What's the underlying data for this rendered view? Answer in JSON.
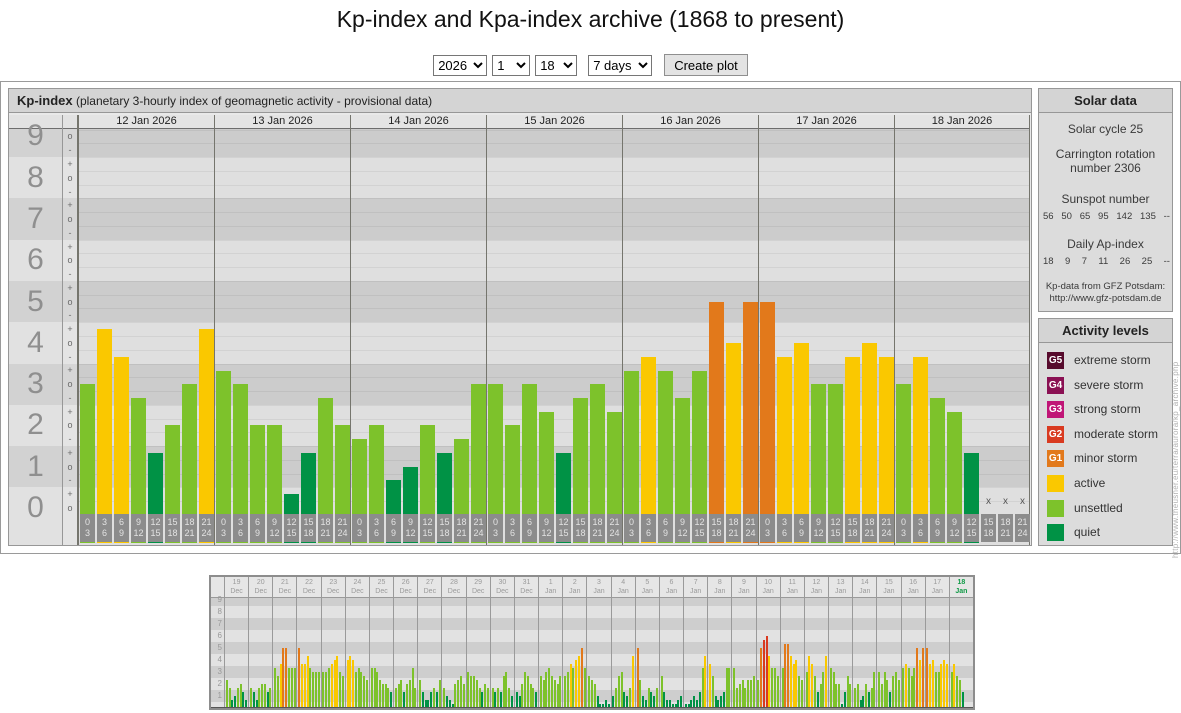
{
  "page_title": "Kp-index and Kpa-index archive (1868 to present)",
  "controls": {
    "year": "2026",
    "month": "1",
    "day": "18",
    "range": "7 days",
    "create_button": "Create plot"
  },
  "kp_panel": {
    "title": "Kp-index",
    "subtitle": "(planetary 3-hourly index of geomagnetic activity - provisional data)"
  },
  "colors": {
    "quiet": "#009245",
    "unsettled": "#7dc22b",
    "active": "#fac800",
    "g1": "#e2791b",
    "g2": "#d93a20",
    "g3": "#c01577",
    "g4": "#8a1053",
    "g5": "#570b2d",
    "today_label": "#109a46"
  },
  "chart_data": [
    {
      "type": "bar",
      "name": "kp-index-7day",
      "title": "Kp-index",
      "ylabel": "Kp",
      "ylim": [
        0,
        9.33
      ],
      "yticks": [
        0,
        1,
        2,
        3,
        4,
        5,
        6,
        7,
        8,
        9
      ],
      "ytick_sublabels": [
        "+",
        "o",
        "-"
      ],
      "grid": "horizontal-bands",
      "missing_marker": "x",
      "x_slot_labels": [
        [
          "0",
          "3"
        ],
        [
          "3",
          "6"
        ],
        [
          "6",
          "9"
        ],
        [
          "9",
          "12"
        ],
        [
          "12",
          "15"
        ],
        [
          "15",
          "18"
        ],
        [
          "18",
          "21"
        ],
        [
          "21",
          "24"
        ]
      ],
      "days": [
        {
          "date": "12 Jan 2026",
          "values": [
            3,
            4.33,
            3.67,
            2.67,
            1.33,
            2,
            3,
            4.33
          ],
          "labels": [
            "3o",
            "4+",
            "4-",
            "3-",
            "1+",
            "2o",
            "3o",
            "4+"
          ]
        },
        {
          "date": "13 Jan 2026",
          "values": [
            3.33,
            3,
            2,
            2,
            0.33,
            1.33,
            2.67,
            2
          ],
          "labels": [
            "3+",
            "3o",
            "2o",
            "2o",
            "0+",
            "1+",
            "3-",
            "2o"
          ]
        },
        {
          "date": "14 Jan 2026",
          "values": [
            1.67,
            2,
            0.67,
            1,
            2,
            1.33,
            1.67,
            3
          ],
          "labels": [
            "2-",
            "2o",
            "1-",
            "1o",
            "2o",
            "1+",
            "2-",
            "3o"
          ]
        },
        {
          "date": "15 Jan 2026",
          "values": [
            3,
            2,
            3,
            2.33,
            1.33,
            2.67,
            3,
            2.33
          ],
          "labels": [
            "3o",
            "2o",
            "3o",
            "2+",
            "1+",
            "3-",
            "3o",
            "2+"
          ]
        },
        {
          "date": "16 Jan 2026",
          "values": [
            3.33,
            3.67,
            3.33,
            2.67,
            3.33,
            5,
            4,
            5
          ],
          "labels": [
            "3+",
            "4-",
            "3+",
            "3-",
            "3+",
            "5o",
            "4o",
            "5o"
          ]
        },
        {
          "date": "17 Jan 2026",
          "values": [
            5,
            3.67,
            4,
            3,
            3,
            3.67,
            4,
            3.67
          ],
          "labels": [
            "5o",
            "4-",
            "4o",
            "3o",
            "3o",
            "4-",
            "4o",
            "4-"
          ]
        },
        {
          "date": "18 Jan 2026",
          "values": [
            3,
            3.67,
            2.67,
            2.33,
            1.33,
            null,
            null,
            null
          ],
          "labels": [
            "3o",
            "4-",
            "3-",
            "2+",
            "1+",
            null,
            null,
            null
          ]
        }
      ]
    },
    {
      "type": "bar",
      "name": "kp-index-31day-overview",
      "ylim": [
        0,
        9
      ],
      "yticks": [
        1,
        2,
        3,
        4,
        5,
        6,
        7,
        8,
        9
      ],
      "grid": "horizontal-bands",
      "days": [
        {
          "day": "19",
          "mon": "Dec",
          "values": [
            2.3,
            1.7,
            0.7,
            1,
            1.7,
            2,
            1.3,
            0.7
          ]
        },
        {
          "day": "20",
          "mon": "Dec",
          "values": [
            1.7,
            1.3,
            0.7,
            1.7,
            2,
            2,
            1.3,
            1.7
          ]
        },
        {
          "day": "21",
          "mon": "Dec",
          "values": [
            3.3,
            2.7,
            3.7,
            5,
            5,
            3.3,
            3.3,
            3.3
          ]
        },
        {
          "day": "22",
          "mon": "Dec",
          "values": [
            5,
            3.7,
            3.7,
            4.3,
            3.3,
            3,
            3,
            3
          ]
        },
        {
          "day": "23",
          "mon": "Dec",
          "values": [
            3,
            3,
            3.3,
            3.7,
            4,
            4.3,
            3,
            2.7
          ]
        },
        {
          "day": "24",
          "mon": "Dec",
          "values": [
            4,
            4.3,
            4,
            3,
            3.3,
            3,
            2.7,
            2.3
          ]
        },
        {
          "day": "25",
          "mon": "Dec",
          "values": [
            3.3,
            3.3,
            3,
            2.3,
            2,
            2,
            1.7,
            1.3
          ]
        },
        {
          "day": "26",
          "mon": "Dec",
          "values": [
            1.7,
            2,
            2.3,
            1.3,
            2,
            2.3,
            3.3,
            1.7
          ]
        },
        {
          "day": "27",
          "mon": "Dec",
          "values": [
            2.3,
            1.3,
            0.7,
            0.7,
            1.3,
            1.7,
            1.3,
            2.3
          ]
        },
        {
          "day": "28",
          "mon": "Dec",
          "values": [
            1.7,
            1,
            0.7,
            0.3,
            2,
            2.3,
            2.7,
            2
          ]
        },
        {
          "day": "29",
          "mon": "Dec",
          "values": [
            3,
            2.7,
            2.7,
            2.3,
            1.7,
            1.3,
            2,
            1.7
          ]
        },
        {
          "day": "30",
          "mon": "Dec",
          "values": [
            1.7,
            1.3,
            1.7,
            1.3,
            2.7,
            3,
            1.7,
            1
          ]
        },
        {
          "day": "31",
          "mon": "Dec",
          "values": [
            1.3,
            1,
            2,
            3,
            2.7,
            2,
            1.7,
            1.3
          ]
        },
        {
          "day": "1",
          "mon": "Jan",
          "values": [
            2.7,
            2.3,
            3,
            3.3,
            2.7,
            2.3,
            2,
            2.7
          ]
        },
        {
          "day": "2",
          "mon": "Jan",
          "values": [
            2.7,
            3,
            3.7,
            3.3,
            4,
            4.3,
            5,
            3.3
          ]
        },
        {
          "day": "3",
          "mon": "Jan",
          "values": [
            2.7,
            2.3,
            2,
            1,
            0.3,
            0.3,
            0.7,
            0.3
          ]
        },
        {
          "day": "4",
          "mon": "Jan",
          "values": [
            1,
            1.7,
            2.7,
            3,
            1.3,
            1,
            1.7,
            4.3
          ]
        },
        {
          "day": "5",
          "mon": "Jan",
          "values": [
            5,
            2.3,
            1,
            0.7,
            1.7,
            1.3,
            1,
            1.7
          ]
        },
        {
          "day": "6",
          "mon": "Jan",
          "values": [
            2.7,
            1.3,
            0.7,
            0.7,
            0.3,
            0.3,
            0.7,
            1
          ]
        },
        {
          "day": "7",
          "mon": "Jan",
          "values": [
            0.3,
            0.3,
            0.7,
            1,
            0.7,
            1.3,
            3.3,
            4.3
          ]
        },
        {
          "day": "8",
          "mon": "Jan",
          "values": [
            3.7,
            2.7,
            1,
            0.7,
            1,
            1.3,
            3.3,
            3.3
          ]
        },
        {
          "day": "9",
          "mon": "Jan",
          "values": [
            3.3,
            1.7,
            2,
            2.3,
            1.7,
            2.3,
            2.3,
            2.7
          ]
        },
        {
          "day": "10",
          "mon": "Jan",
          "values": [
            2.3,
            5,
            5.7,
            6,
            4.3,
            3.3,
            3.3,
            2.7
          ]
        },
        {
          "day": "11",
          "mon": "Jan",
          "values": [
            3.3,
            5.3,
            5.3,
            4.3,
            3.7,
            4,
            2.7,
            2.3
          ]
        },
        {
          "day": "12",
          "mon": "Jan",
          "values": [
            3,
            4.3,
            3.7,
            2.7,
            1.3,
            2,
            3,
            4.3
          ]
        },
        {
          "day": "13",
          "mon": "Jan",
          "values": [
            3.3,
            3,
            2,
            2,
            0.3,
            1.3,
            2.7,
            2
          ]
        },
        {
          "day": "14",
          "mon": "Jan",
          "values": [
            1.7,
            2,
            0.7,
            1,
            2,
            1.3,
            1.7,
            3
          ]
        },
        {
          "day": "15",
          "mon": "Jan",
          "values": [
            3,
            2,
            3,
            2.3,
            1.3,
            2.7,
            3,
            2.3
          ]
        },
        {
          "day": "16",
          "mon": "Jan",
          "values": [
            3.3,
            3.7,
            3.3,
            2.7,
            3.3,
            5,
            4,
            5
          ]
        },
        {
          "day": "17",
          "mon": "Jan",
          "values": [
            5,
            3.7,
            4,
            3,
            3,
            3.7,
            4,
            3.7
          ]
        },
        {
          "day": "18",
          "mon": "Jan",
          "values": [
            3,
            3.7,
            2.7,
            2.3,
            1.3
          ],
          "today": true
        }
      ]
    }
  ],
  "solar": {
    "title": "Solar data",
    "cycle": "Solar cycle 25",
    "carrington": "Carrington rotation number 2306",
    "sunspot_title": "Sunspot number",
    "sunspot_values": [
      "56",
      "50",
      "65",
      "95",
      "142",
      "135",
      "--"
    ],
    "ap_title": "Daily Ap-index",
    "ap_values": [
      "18",
      "9",
      "7",
      "11",
      "26",
      "25",
      "--"
    ],
    "source_line1": "Kp-data from GFZ Potsdam:",
    "source_line2": "http://www.gfz-potsdam.de"
  },
  "legend": {
    "title": "Activity levels",
    "items": [
      {
        "code": "G5",
        "label": "extreme storm",
        "color_key": "g5"
      },
      {
        "code": "G4",
        "label": "severe storm",
        "color_key": "g4"
      },
      {
        "code": "G3",
        "label": "strong storm",
        "color_key": "g3"
      },
      {
        "code": "G2",
        "label": "moderate storm",
        "color_key": "g2"
      },
      {
        "code": "G1",
        "label": "minor storm",
        "color_key": "g1"
      },
      {
        "code": "",
        "label": "active",
        "color_key": "active"
      },
      {
        "code": "",
        "label": "unsettled",
        "color_key": "unsettled"
      },
      {
        "code": "",
        "label": "quiet",
        "color_key": "quiet"
      }
    ]
  },
  "watermark": "http://www.theusner.eu/terra/aurora/kp_archive.php"
}
